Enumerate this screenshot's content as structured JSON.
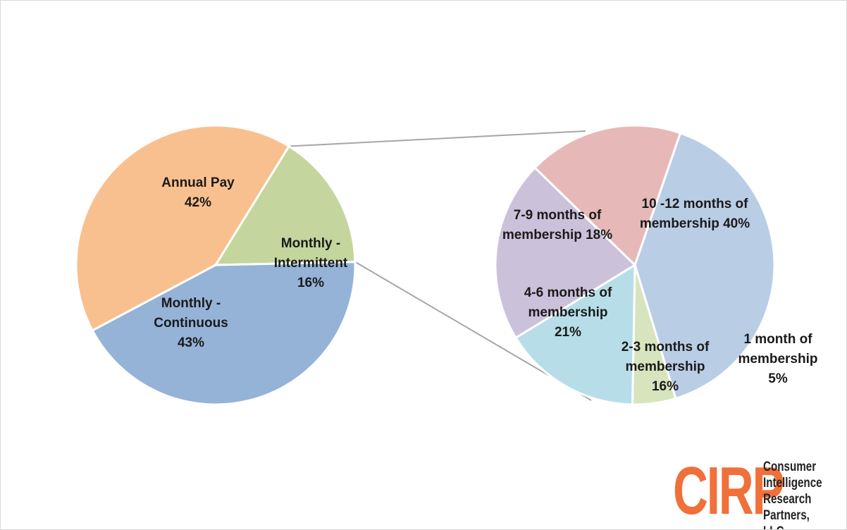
{
  "chart_data": {
    "type": "pie",
    "subtype": "pie-of-pie",
    "primary": {
      "slices": [
        {
          "name": "Annual Pay",
          "value": 42,
          "color": "#f9c08f",
          "label_lines": [
            "Annual Pay",
            "42%"
          ]
        },
        {
          "name": "Monthly - Intermittent",
          "value": 16,
          "color": "#c4d69d",
          "label_lines": [
            "Monthly -",
            "Intermittent",
            "16%"
          ]
        },
        {
          "name": "Monthly - Continuous",
          "value": 43,
          "color": "#95b3d7",
          "label_lines": [
            "Monthly -",
            "Continuous",
            "43%"
          ]
        }
      ]
    },
    "secondary": {
      "source_slice": "Monthly - Intermittent",
      "slices": [
        {
          "name": "10 -12 months of membership",
          "value": 40,
          "color": "#b9cde5",
          "label_lines": [
            "10 -12 months of",
            "membership 40%"
          ]
        },
        {
          "name": "1 month of membership",
          "value": 5,
          "color": "#d7e4bd",
          "label_lines": [
            "1 month of",
            "membership",
            "5%"
          ]
        },
        {
          "name": "2-3 months of membership",
          "value": 16,
          "color": "#b7dee8",
          "label_lines": [
            "2-3 months of",
            "membership",
            "16%"
          ]
        },
        {
          "name": "4-6 months of membership",
          "value": 21,
          "color": "#ccc1da",
          "label_lines": [
            "4-6 months of",
            "membership",
            "21%"
          ]
        },
        {
          "name": "7-9 months of membership",
          "value": 18,
          "color": "#e6b9b8",
          "label_lines": [
            "7-9 months of",
            "membership 18%"
          ]
        }
      ]
    },
    "title": "",
    "legend": "none"
  },
  "logo": {
    "mark": "CIRP",
    "mark_color": "#f0703a",
    "lines": [
      "Consumer",
      "Intelligence",
      "Research",
      "Partners, LLC"
    ]
  }
}
